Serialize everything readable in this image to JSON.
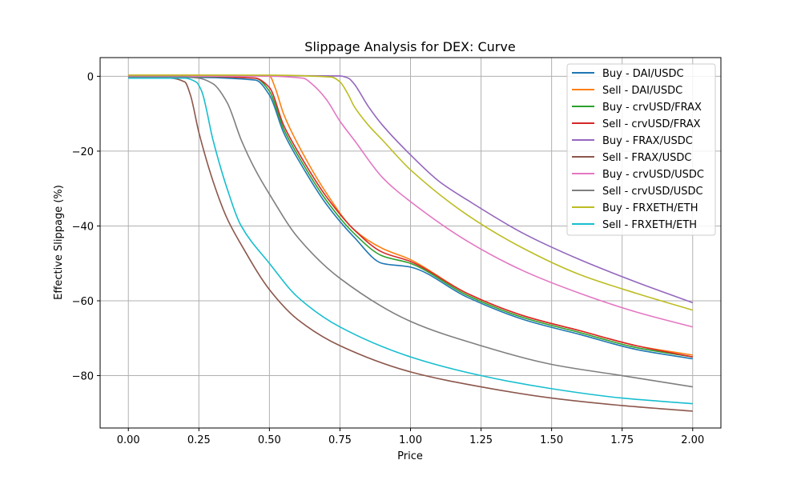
{
  "chart_data": {
    "type": "line",
    "title": "Slippage Analysis for DEX: Curve",
    "xlabel": "Price",
    "ylabel": "Effective Slippage (%)",
    "xlim": [
      -0.1,
      2.1
    ],
    "ylim": [
      -94,
      5
    ],
    "xticks": [
      0.0,
      0.25,
      0.5,
      0.75,
      1.0,
      1.25,
      1.5,
      1.75,
      2.0
    ],
    "xtick_labels": [
      "0.00",
      "0.25",
      "0.50",
      "0.75",
      "1.00",
      "1.25",
      "1.50",
      "1.75",
      "2.00"
    ],
    "yticks": [
      0,
      -20,
      -40,
      -60,
      -80
    ],
    "ytick_labels": [
      "0",
      "−20",
      "−40",
      "−60",
      "−80"
    ],
    "grid": true,
    "legend_position": "top-right",
    "series": [
      {
        "name": "Buy - DAI/USDC",
        "color": "#1f77b4",
        "x": [
          0,
          0.25,
          0.45,
          0.5,
          0.55,
          0.6,
          0.7,
          0.8,
          0.9,
          1.0,
          1.2,
          1.4,
          1.6,
          1.8,
          2.0
        ],
        "y": [
          -0.3,
          -0.3,
          -1,
          -5,
          -15,
          -22,
          -34,
          -43,
          -50,
          -51,
          -59,
          -65,
          -69,
          -73,
          -75.5
        ]
      },
      {
        "name": "Sell - DAI/USDC",
        "color": "#ff7f0e",
        "x": [
          0,
          0.25,
          0.5,
          0.52,
          0.55,
          0.6,
          0.7,
          0.8,
          0.9,
          1.0,
          1.2,
          1.4,
          1.6,
          1.8,
          2.0
        ],
        "y": [
          0.3,
          0.3,
          0.1,
          -3,
          -10,
          -18,
          -31,
          -41,
          -46,
          -49,
          -58,
          -64,
          -68,
          -72,
          -74.5
        ]
      },
      {
        "name": "Buy - crvUSD/FRAX",
        "color": "#2ca02c",
        "x": [
          0,
          0.25,
          0.45,
          0.5,
          0.55,
          0.6,
          0.7,
          0.8,
          0.9,
          1.0,
          1.2,
          1.4,
          1.6,
          1.8,
          2.0
        ],
        "y": [
          -0.1,
          -0.1,
          -0.5,
          -4,
          -14,
          -21,
          -33,
          -42,
          -48,
          -50,
          -58.5,
          -64.5,
          -68.5,
          -72.5,
          -75
        ]
      },
      {
        "name": "Sell - crvUSD/FRAX",
        "color": "#d62728",
        "x": [
          0,
          0.25,
          0.45,
          0.5,
          0.55,
          0.6,
          0.7,
          0.8,
          0.9,
          1.0,
          1.2,
          1.4,
          1.6,
          1.8,
          2.0
        ],
        "y": [
          0.1,
          0.0,
          -0.5,
          -3,
          -13,
          -20,
          -32,
          -41,
          -47,
          -49.5,
          -58,
          -64,
          -68,
          -72,
          -75
        ]
      },
      {
        "name": "Buy - FRAX/USDC",
        "color": "#9467bd",
        "x": [
          0,
          0.5,
          0.75,
          0.78,
          0.8,
          0.85,
          0.9,
          1.0,
          1.1,
          1.2,
          1.4,
          1.6,
          1.8,
          2.0
        ],
        "y": [
          0.2,
          0.2,
          0.1,
          -0.5,
          -2,
          -8,
          -13,
          -21,
          -28,
          -33,
          -42,
          -49,
          -55,
          -60.5
        ]
      },
      {
        "name": "Sell - FRAX/USDC",
        "color": "#8c564b",
        "x": [
          0,
          0.15,
          0.2,
          0.22,
          0.25,
          0.3,
          0.35,
          0.4,
          0.5,
          0.6,
          0.75,
          1.0,
          1.25,
          1.5,
          1.75,
          2.0
        ],
        "y": [
          -0.3,
          -0.5,
          -1.5,
          -5,
          -15,
          -28,
          -38,
          -45,
          -57,
          -65,
          -72,
          -79,
          -83,
          -86,
          -88,
          -89.5
        ]
      },
      {
        "name": "Buy - crvUSD/USDC",
        "color": "#e377c2",
        "x": [
          0,
          0.5,
          0.62,
          0.65,
          0.7,
          0.75,
          0.8,
          0.9,
          1.0,
          1.2,
          1.4,
          1.6,
          1.8,
          2.0
        ],
        "y": [
          0.0,
          0.0,
          -0.5,
          -2,
          -6,
          -12,
          -17,
          -27,
          -33.5,
          -44,
          -52,
          -58,
          -63,
          -67
        ]
      },
      {
        "name": "Sell - crvUSD/USDC",
        "color": "#7f7f7f",
        "x": [
          0,
          0.2,
          0.25,
          0.3,
          0.35,
          0.4,
          0.45,
          0.5,
          0.6,
          0.75,
          1.0,
          1.25,
          1.5,
          1.75,
          2.0
        ],
        "y": [
          -0.2,
          -0.2,
          -0.5,
          -2,
          -7,
          -17,
          -25,
          -31.5,
          -43,
          -54,
          -65.5,
          -72,
          -77,
          -80,
          -83
        ]
      },
      {
        "name": "Buy - FRXETH/ETH",
        "color": "#bcbd22",
        "x": [
          0,
          0.5,
          0.72,
          0.75,
          0.78,
          0.8,
          0.85,
          0.9,
          1.0,
          1.2,
          1.4,
          1.6,
          1.8,
          2.0
        ],
        "y": [
          0.3,
          0.3,
          -0.2,
          -1.5,
          -5,
          -8,
          -13,
          -17,
          -25,
          -37,
          -46,
          -53,
          -58,
          -62.5
        ]
      },
      {
        "name": "Sell - FRXETH/ETH",
        "color": "#17becf",
        "x": [
          0,
          0.2,
          0.24,
          0.26,
          0.3,
          0.35,
          0.4,
          0.5,
          0.6,
          0.75,
          1.0,
          1.25,
          1.5,
          1.75,
          2.0
        ],
        "y": [
          -0.5,
          -0.5,
          -1.5,
          -4,
          -17,
          -30,
          -40,
          -50,
          -59,
          -67,
          -75,
          -80,
          -83.5,
          -86,
          -87.5
        ]
      }
    ]
  }
}
